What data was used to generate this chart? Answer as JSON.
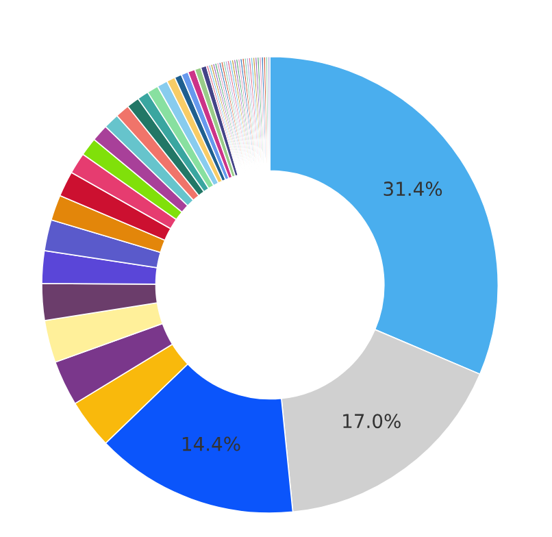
{
  "chart_data": {
    "type": "donut",
    "categories": [
      null,
      null,
      null,
      null,
      null,
      null,
      null,
      null,
      null,
      null,
      null,
      null,
      null,
      null,
      null,
      null,
      null,
      null,
      null,
      null,
      null,
      null,
      null,
      null,
      null,
      null,
      null,
      null,
      null,
      null,
      null,
      null,
      null,
      null,
      null,
      null,
      null,
      null,
      null,
      null,
      null,
      null,
      null,
      null,
      null,
      null,
      null,
      null,
      null,
      null,
      null,
      null,
      null,
      null,
      null,
      null
    ],
    "values": [
      31.4,
      17.0,
      14.4,
      3.5,
      3.2,
      3.0,
      2.6,
      2.3,
      2.2,
      1.8,
      1.8,
      1.5,
      1.3,
      1.2,
      1.1,
      1.0,
      0.9,
      0.8,
      0.8,
      0.75,
      0.6,
      0.5,
      0.5,
      0.5,
      0.45,
      0.4,
      0.15,
      0.15,
      0.15,
      0.15,
      0.15,
      0.15,
      0.15,
      0.15,
      0.15,
      0.15,
      0.15,
      0.15,
      0.15,
      0.15,
      0.15,
      0.15,
      0.15,
      0.15,
      0.15,
      0.15,
      0.15,
      0.15,
      0.15,
      0.15,
      0.15,
      0.15,
      0.15,
      0.15,
      0.15,
      0.15
    ],
    "colors": [
      "#4aaeee",
      "#d0d0d0",
      "#0b55fb",
      "#f9b90c",
      "#7a378b",
      "#fff09a",
      "#6b3d6b",
      "#5a46d8",
      "#5a5acb",
      "#e3860a",
      "#cc1030",
      "#e63c70",
      "#80e00a",
      "#a84099",
      "#66c4cc",
      "#f0746a",
      "#227766",
      "#3aa6a0",
      "#88e0a0",
      "#88ccee",
      "#f8cc66",
      "#1f5f8f",
      "#6699ee",
      "#cc3388",
      "#99cc88",
      "#444488",
      "#e07090",
      "#70c0e0",
      "#c0a040",
      "#a070c0",
      "#60b080",
      "#e0a0c0",
      "#4080c0",
      "#d06040",
      "#90d0b0",
      "#b0b0e0",
      "#e07090",
      "#70c0e0",
      "#c0a040",
      "#a070c0",
      "#60b080",
      "#e0a0c0",
      "#4080c0",
      "#d06040",
      "#90d0b0",
      "#b0b0e0",
      "#e07090",
      "#70c0e0",
      "#c0a040",
      "#a070c0",
      "#60b080",
      "#e0a0c0",
      "#4080c0",
      "#d06040",
      "#90d0b0",
      "#b0b0e0"
    ],
    "value_labels": [
      "31.4%",
      "17.0%",
      "14.4%",
      null,
      null,
      null,
      null,
      null,
      null,
      null,
      null,
      null,
      null,
      null,
      null,
      null,
      null,
      null,
      null,
      null,
      null,
      null,
      null,
      null,
      null,
      null,
      null,
      null,
      null,
      null,
      null,
      null,
      null,
      null,
      null,
      null,
      null,
      null,
      null,
      null,
      null,
      null,
      null,
      null,
      null,
      null,
      null,
      null,
      null,
      null,
      null,
      null,
      null,
      null,
      null,
      null
    ]
  }
}
